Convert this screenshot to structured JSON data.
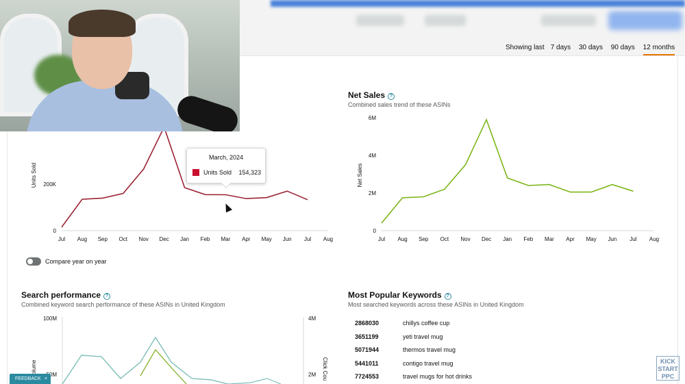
{
  "date_range": {
    "prefix": "Showing last",
    "options": [
      "7 days",
      "30 days",
      "90 days",
      "12 months"
    ],
    "active": "12 months"
  },
  "units_panel": {
    "y_axis_label": "Units Sold",
    "y_ticks": [
      "200K",
      "0"
    ],
    "x_ticks": [
      "Jul",
      "Aug",
      "Sep",
      "Oct",
      "Nov",
      "Dec",
      "Jan",
      "Feb",
      "Mar",
      "Apr",
      "May",
      "Jun",
      "Jul",
      "Aug"
    ],
    "line_color": "#9b2335"
  },
  "tooltip": {
    "title": "March, 2024",
    "series": "Units Sold",
    "value": "154,323",
    "swatch_color": "#c8102e"
  },
  "compare_toggle": {
    "label": "Compare year on year",
    "on": false
  },
  "net_sales_panel": {
    "title": "Net Sales",
    "subtitle": "Combined sales trend of these ASINs",
    "y_axis_label": "Net Sales",
    "y_ticks": [
      "6M",
      "4M",
      "2M",
      "0"
    ],
    "x_ticks": [
      "Jul",
      "Aug",
      "Sep",
      "Oct",
      "Nov",
      "Dec",
      "Jan",
      "Feb",
      "Mar",
      "Apr",
      "May",
      "Jun",
      "Jul",
      "Aug"
    ],
    "line_color": "#7cb518"
  },
  "search_panel": {
    "title": "Search performance",
    "subtitle": "Combined keyword search performance of these ASINs in United Kingdom",
    "left_ticks": [
      "100M",
      "50M"
    ],
    "right_ticks": [
      "4M",
      "2M"
    ],
    "left_axis_label": "Volume",
    "right_axis_label": "Click Cou"
  },
  "keywords_panel": {
    "title": "Most Popular Keywords",
    "subtitle": "Most searched keywords across these ASINs in United Kingdom",
    "rows": [
      {
        "rank": "2868030",
        "keyword": "chillys coffee cup"
      },
      {
        "rank": "3651199",
        "keyword": "yeti travel mug"
      },
      {
        "rank": "5071944",
        "keyword": "thermos travel mug"
      },
      {
        "rank": "5441011",
        "keyword": "contigo travel mug"
      },
      {
        "rank": "7724553",
        "keyword": "travel mugs for hot drinks"
      }
    ]
  },
  "feedback": {
    "label": "FEEDBACK",
    "close": "×"
  },
  "logo": {
    "line1": "KICK",
    "line2": "START",
    "line3": "PPC"
  },
  "chart_data": [
    {
      "type": "line",
      "x": [
        "Jul",
        "Aug",
        "Sep",
        "Oct",
        "Nov",
        "Dec",
        "Jan",
        "Feb",
        "Mar",
        "Apr",
        "May",
        "Jun",
        "Jul"
      ],
      "series": [
        {
          "values": [
            15000,
            135000,
            140000,
            160000,
            265000,
            445000,
            185000,
            155000,
            154323,
            138000,
            142000,
            170000,
            133000
          ]
        }
      ],
      "ylabel": "Units Sold",
      "ylim": [
        0,
        450000
      ]
    },
    {
      "type": "line",
      "title": "Net Sales",
      "x": [
        "Jul",
        "Aug",
        "Sep",
        "Oct",
        "Nov",
        "Dec",
        "Jan",
        "Feb",
        "Mar",
        "Apr",
        "May",
        "Jun",
        "Jul"
      ],
      "series": [
        {
          "values": [
            0.4,
            1.75,
            1.8,
            2.2,
            3.5,
            5.9,
            2.8,
            2.4,
            2.45,
            2.05,
            2.05,
            2.45,
            2.1
          ]
        }
      ],
      "ylabel": "Net Sales",
      "ylim": [
        0,
        6
      ]
    }
  ]
}
